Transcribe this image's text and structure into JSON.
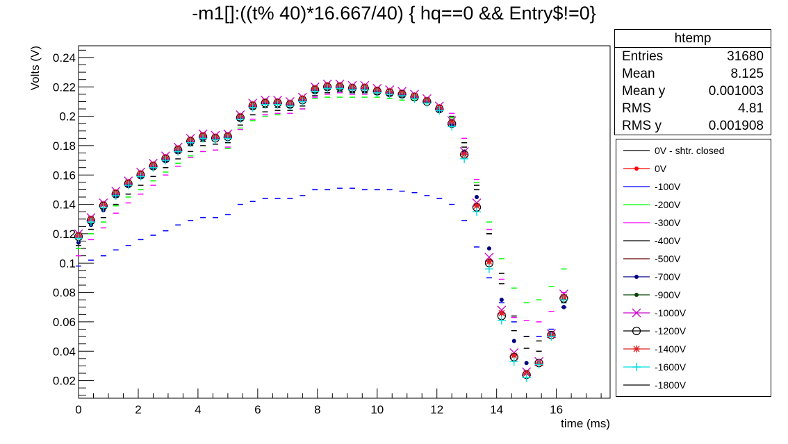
{
  "chart_data": {
    "type": "scatter",
    "title": "-m1[]:((t% 40)*16.667/40) { hq==0 && Entry$!=0}",
    "xlabel": "time (ms)",
    "ylabel": "Volts (V)",
    "xlim": [
      0,
      17.8
    ],
    "ylim": [
      0.008,
      0.248
    ],
    "x_ticks": [
      "0",
      "2",
      "4",
      "6",
      "8",
      "10",
      "12",
      "14",
      "16"
    ],
    "y_ticks": [
      "0.02",
      "0.04",
      "0.06",
      "0.08",
      "0.1",
      "0.12",
      "0.14",
      "0.16",
      "0.18",
      "0.2",
      "0.22",
      "0.24"
    ],
    "x": [
      0,
      0.417,
      0.833,
      1.25,
      1.667,
      2.083,
      2.5,
      2.917,
      3.333,
      3.75,
      4.167,
      4.583,
      5.0,
      5.417,
      5.833,
      6.25,
      6.667,
      7.083,
      7.5,
      7.917,
      8.333,
      8.75,
      9.167,
      9.583,
      10.0,
      10.417,
      10.833,
      11.25,
      11.667,
      12.083,
      12.5,
      12.917,
      13.333,
      13.75,
      14.167,
      14.583,
      15.0,
      15.417,
      15.833,
      16.25
    ],
    "series": [
      {
        "name": "0V - shtr. closed",
        "color": "#000000",
        "marker": "dash",
        "values": [
          0.117,
          0.127,
          0.137,
          0.145,
          0.152,
          0.158,
          0.164,
          0.169,
          0.175,
          0.18,
          0.183,
          0.184,
          0.185,
          0.197,
          0.205,
          0.206,
          0.206,
          0.206,
          0.21,
          0.216,
          0.218,
          0.218,
          0.217,
          0.217,
          0.216,
          0.215,
          0.214,
          0.212,
          0.21,
          0.205,
          0.197,
          0.179,
          0.15,
          0.12,
          0.093,
          0.064,
          0.042,
          0.04,
          0.05,
          0.073
        ]
      },
      {
        "name": "0V",
        "color": "#ff0000",
        "marker": "dot",
        "values": [
          0.118,
          0.13,
          0.14,
          0.148,
          0.155,
          0.161,
          0.167,
          0.172,
          0.178,
          0.184,
          0.187,
          0.186,
          0.187,
          0.2,
          0.208,
          0.21,
          0.21,
          0.209,
          0.212,
          0.219,
          0.221,
          0.221,
          0.22,
          0.22,
          0.218,
          0.217,
          0.216,
          0.214,
          0.211,
          0.205,
          0.195,
          0.174,
          0.139,
          0.101,
          0.066,
          0.037,
          0.025,
          0.032,
          0.051,
          0.076
        ]
      },
      {
        "name": "-100V",
        "color": "#0000ff",
        "marker": "dash",
        "values": [
          0.098,
          0.102,
          0.105,
          0.109,
          0.112,
          0.116,
          0.119,
          0.122,
          0.126,
          0.129,
          0.131,
          0.131,
          0.133,
          0.14,
          0.142,
          0.144,
          0.144,
          0.144,
          0.146,
          0.15,
          0.15,
          0.151,
          0.151,
          0.15,
          0.15,
          0.15,
          0.149,
          0.148,
          0.146,
          0.144,
          0.14,
          0.129,
          0.111,
          0.09,
          0.073,
          0.06,
          0.05,
          0.05,
          0.055,
          0.07
        ]
      },
      {
        "name": "-200V",
        "color": "#00ff00",
        "marker": "dash",
        "values": [
          0.11,
          0.12,
          0.128,
          0.139,
          0.145,
          0.15,
          0.156,
          0.162,
          0.168,
          0.173,
          0.176,
          0.177,
          0.178,
          0.192,
          0.197,
          0.2,
          0.201,
          0.202,
          0.205,
          0.212,
          0.213,
          0.213,
          0.213,
          0.213,
          0.213,
          0.212,
          0.211,
          0.211,
          0.209,
          0.205,
          0.199,
          0.182,
          0.155,
          0.128,
          0.103,
          0.083,
          0.073,
          0.075,
          0.084,
          0.096
        ]
      },
      {
        "name": "-300V",
        "color": "#ff00ff",
        "marker": "dash",
        "values": [
          0.105,
          0.116,
          0.124,
          0.134,
          0.141,
          0.147,
          0.153,
          0.16,
          0.166,
          0.172,
          0.176,
          0.177,
          0.179,
          0.191,
          0.198,
          0.201,
          0.202,
          0.202,
          0.205,
          0.213,
          0.215,
          0.216,
          0.215,
          0.215,
          0.215,
          0.214,
          0.213,
          0.212,
          0.21,
          0.207,
          0.202,
          0.185,
          0.157,
          0.123,
          0.089,
          0.063,
          0.061,
          0.06,
          0.067,
          0.08
        ]
      },
      {
        "name": "-400V",
        "color": "#000000",
        "marker": "dash",
        "values": [
          0.112,
          0.123,
          0.131,
          0.14,
          0.147,
          0.153,
          0.159,
          0.165,
          0.171,
          0.176,
          0.18,
          0.181,
          0.182,
          0.194,
          0.201,
          0.203,
          0.204,
          0.204,
          0.207,
          0.214,
          0.216,
          0.217,
          0.216,
          0.216,
          0.215,
          0.214,
          0.213,
          0.212,
          0.21,
          0.206,
          0.2,
          0.182,
          0.153,
          0.12,
          0.086,
          0.054,
          0.05,
          0.047,
          0.052,
          0.075
        ]
      },
      {
        "name": "-700V",
        "color": "#000080",
        "marker": "dot",
        "values": [
          0.114,
          0.126,
          0.136,
          0.146,
          0.153,
          0.159,
          0.165,
          0.17,
          0.176,
          0.182,
          0.185,
          0.185,
          0.186,
          0.199,
          0.207,
          0.209,
          0.209,
          0.208,
          0.211,
          0.218,
          0.22,
          0.22,
          0.219,
          0.219,
          0.217,
          0.216,
          0.215,
          0.213,
          0.21,
          0.204,
          0.194,
          0.176,
          0.145,
          0.11,
          0.075,
          0.047,
          0.032,
          0.032,
          0.052,
          0.07
        ]
      },
      {
        "name": "-1000V",
        "color": "#cc00cc",
        "marker": "cross",
        "values": [
          0.12,
          0.131,
          0.141,
          0.149,
          0.156,
          0.162,
          0.168,
          0.173,
          0.179,
          0.185,
          0.188,
          0.187,
          0.188,
          0.201,
          0.209,
          0.211,
          0.211,
          0.21,
          0.213,
          0.22,
          0.222,
          0.222,
          0.221,
          0.221,
          0.219,
          0.218,
          0.217,
          0.215,
          0.212,
          0.207,
          0.197,
          0.176,
          0.141,
          0.104,
          0.068,
          0.039,
          0.026,
          0.033,
          0.052,
          0.079
        ]
      },
      {
        "name": "-1200V",
        "color": "#000000",
        "marker": "circle",
        "values": [
          0.118,
          0.129,
          0.139,
          0.147,
          0.154,
          0.16,
          0.166,
          0.171,
          0.177,
          0.183,
          0.186,
          0.185,
          0.186,
          0.199,
          0.207,
          0.209,
          0.209,
          0.208,
          0.211,
          0.218,
          0.22,
          0.22,
          0.219,
          0.219,
          0.217,
          0.216,
          0.215,
          0.213,
          0.21,
          0.205,
          0.195,
          0.174,
          0.138,
          0.1,
          0.064,
          0.036,
          0.024,
          0.032,
          0.051,
          0.076
        ]
      },
      {
        "name": "-1400V",
        "color": "#dd2222",
        "marker": "star",
        "values": [
          0.119,
          0.13,
          0.14,
          0.148,
          0.155,
          0.161,
          0.167,
          0.172,
          0.178,
          0.184,
          0.187,
          0.186,
          0.187,
          0.2,
          0.208,
          0.21,
          0.21,
          0.209,
          0.212,
          0.219,
          0.221,
          0.221,
          0.22,
          0.22,
          0.218,
          0.217,
          0.216,
          0.214,
          0.211,
          0.206,
          0.196,
          0.174,
          0.139,
          0.101,
          0.066,
          0.037,
          0.025,
          0.032,
          0.051,
          0.077
        ]
      },
      {
        "name": "-1600V",
        "color": "#00dddd",
        "marker": "plus",
        "values": [
          0.117,
          0.128,
          0.138,
          0.146,
          0.153,
          0.159,
          0.165,
          0.17,
          0.176,
          0.182,
          0.185,
          0.184,
          0.185,
          0.198,
          0.206,
          0.208,
          0.208,
          0.207,
          0.21,
          0.217,
          0.219,
          0.219,
          0.218,
          0.218,
          0.216,
          0.215,
          0.214,
          0.212,
          0.209,
          0.204,
          0.193,
          0.171,
          0.135,
          0.096,
          0.061,
          0.033,
          0.022,
          0.031,
          0.05,
          0.075
        ]
      }
    ],
    "legend_placement": "right",
    "legend": [
      {
        "name": "0V - shtr. closed",
        "color": "#000000",
        "marker": "dash"
      },
      {
        "name": "0V",
        "color": "#ff0000",
        "marker": "dot"
      },
      {
        "name": "-100V",
        "color": "#0000ff",
        "marker": "dash"
      },
      {
        "name": "-200V",
        "color": "#00ff00",
        "marker": "dash"
      },
      {
        "name": "-300V",
        "color": "#ff00ff",
        "marker": "dash"
      },
      {
        "name": "-400V",
        "color": "#000000",
        "marker": "dash"
      },
      {
        "name": "-500V",
        "color": "#660000",
        "marker": "dash"
      },
      {
        "name": "-700V",
        "color": "#000080",
        "marker": "dot"
      },
      {
        "name": "-900V",
        "color": "#004400",
        "marker": "dot"
      },
      {
        "name": "-1000V",
        "color": "#cc00cc",
        "marker": "cross"
      },
      {
        "name": "-1200V",
        "color": "#000000",
        "marker": "circle"
      },
      {
        "name": "-1400V",
        "color": "#dd2222",
        "marker": "star"
      },
      {
        "name": "-1600V",
        "color": "#00dddd",
        "marker": "plus"
      },
      {
        "name": "-1800V",
        "color": "#000000",
        "marker": "dash"
      }
    ],
    "stats": {
      "header": "htemp",
      "rows": [
        {
          "label": "Entries",
          "value": "31680"
        },
        {
          "label": "Mean",
          "value": "8.125"
        },
        {
          "label": "Mean y",
          "value": "0.001003"
        },
        {
          "label": "RMS",
          "value": "4.81"
        },
        {
          "label": "RMS y",
          "value": "0.001908"
        }
      ]
    }
  }
}
